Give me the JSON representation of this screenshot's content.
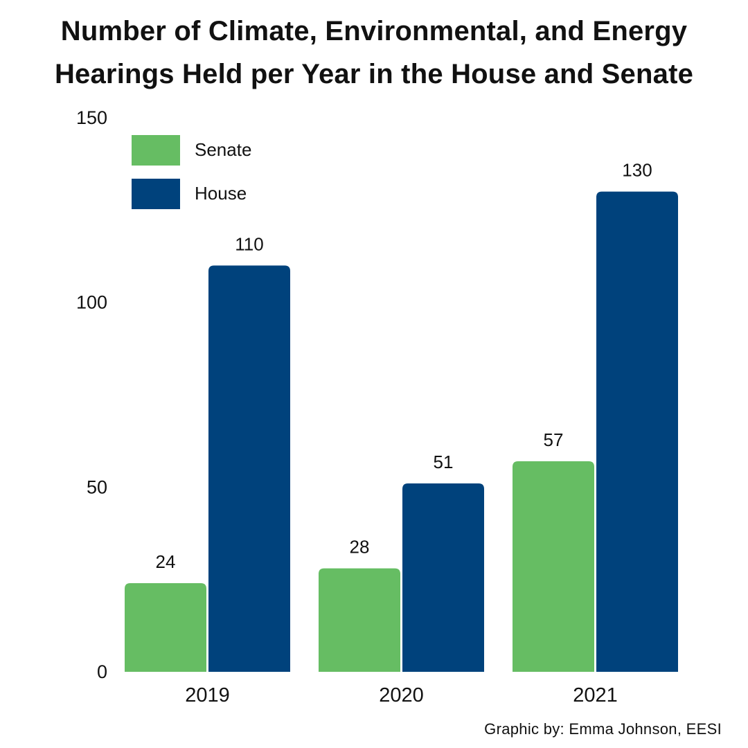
{
  "title": {
    "line1": "Number of Climate, Environmental, and Energy",
    "line2": "Hearings Held per Year in the House and Senate"
  },
  "credit": "Graphic by: Emma Johnson, EESI",
  "colors": {
    "senate": "#66bd63",
    "house": "#00427c",
    "text": "#111111"
  },
  "chart_data": {
    "type": "bar",
    "title": "Number of Climate, Environmental, and Energy Hearings Held per Year in the House and Senate",
    "categories": [
      "2019",
      "2020",
      "2021"
    ],
    "series": [
      {
        "name": "Senate",
        "values": [
          24,
          28,
          57
        ],
        "color": "#66bd63"
      },
      {
        "name": "House",
        "values": [
          110,
          51,
          130
        ],
        "color": "#00427c"
      }
    ],
    "yticks": [
      0,
      50,
      100,
      150
    ],
    "ylim": [
      0,
      150
    ],
    "xlabel": "",
    "ylabel": "",
    "legend_position": "top-left",
    "grid": false,
    "data_labels": true
  }
}
